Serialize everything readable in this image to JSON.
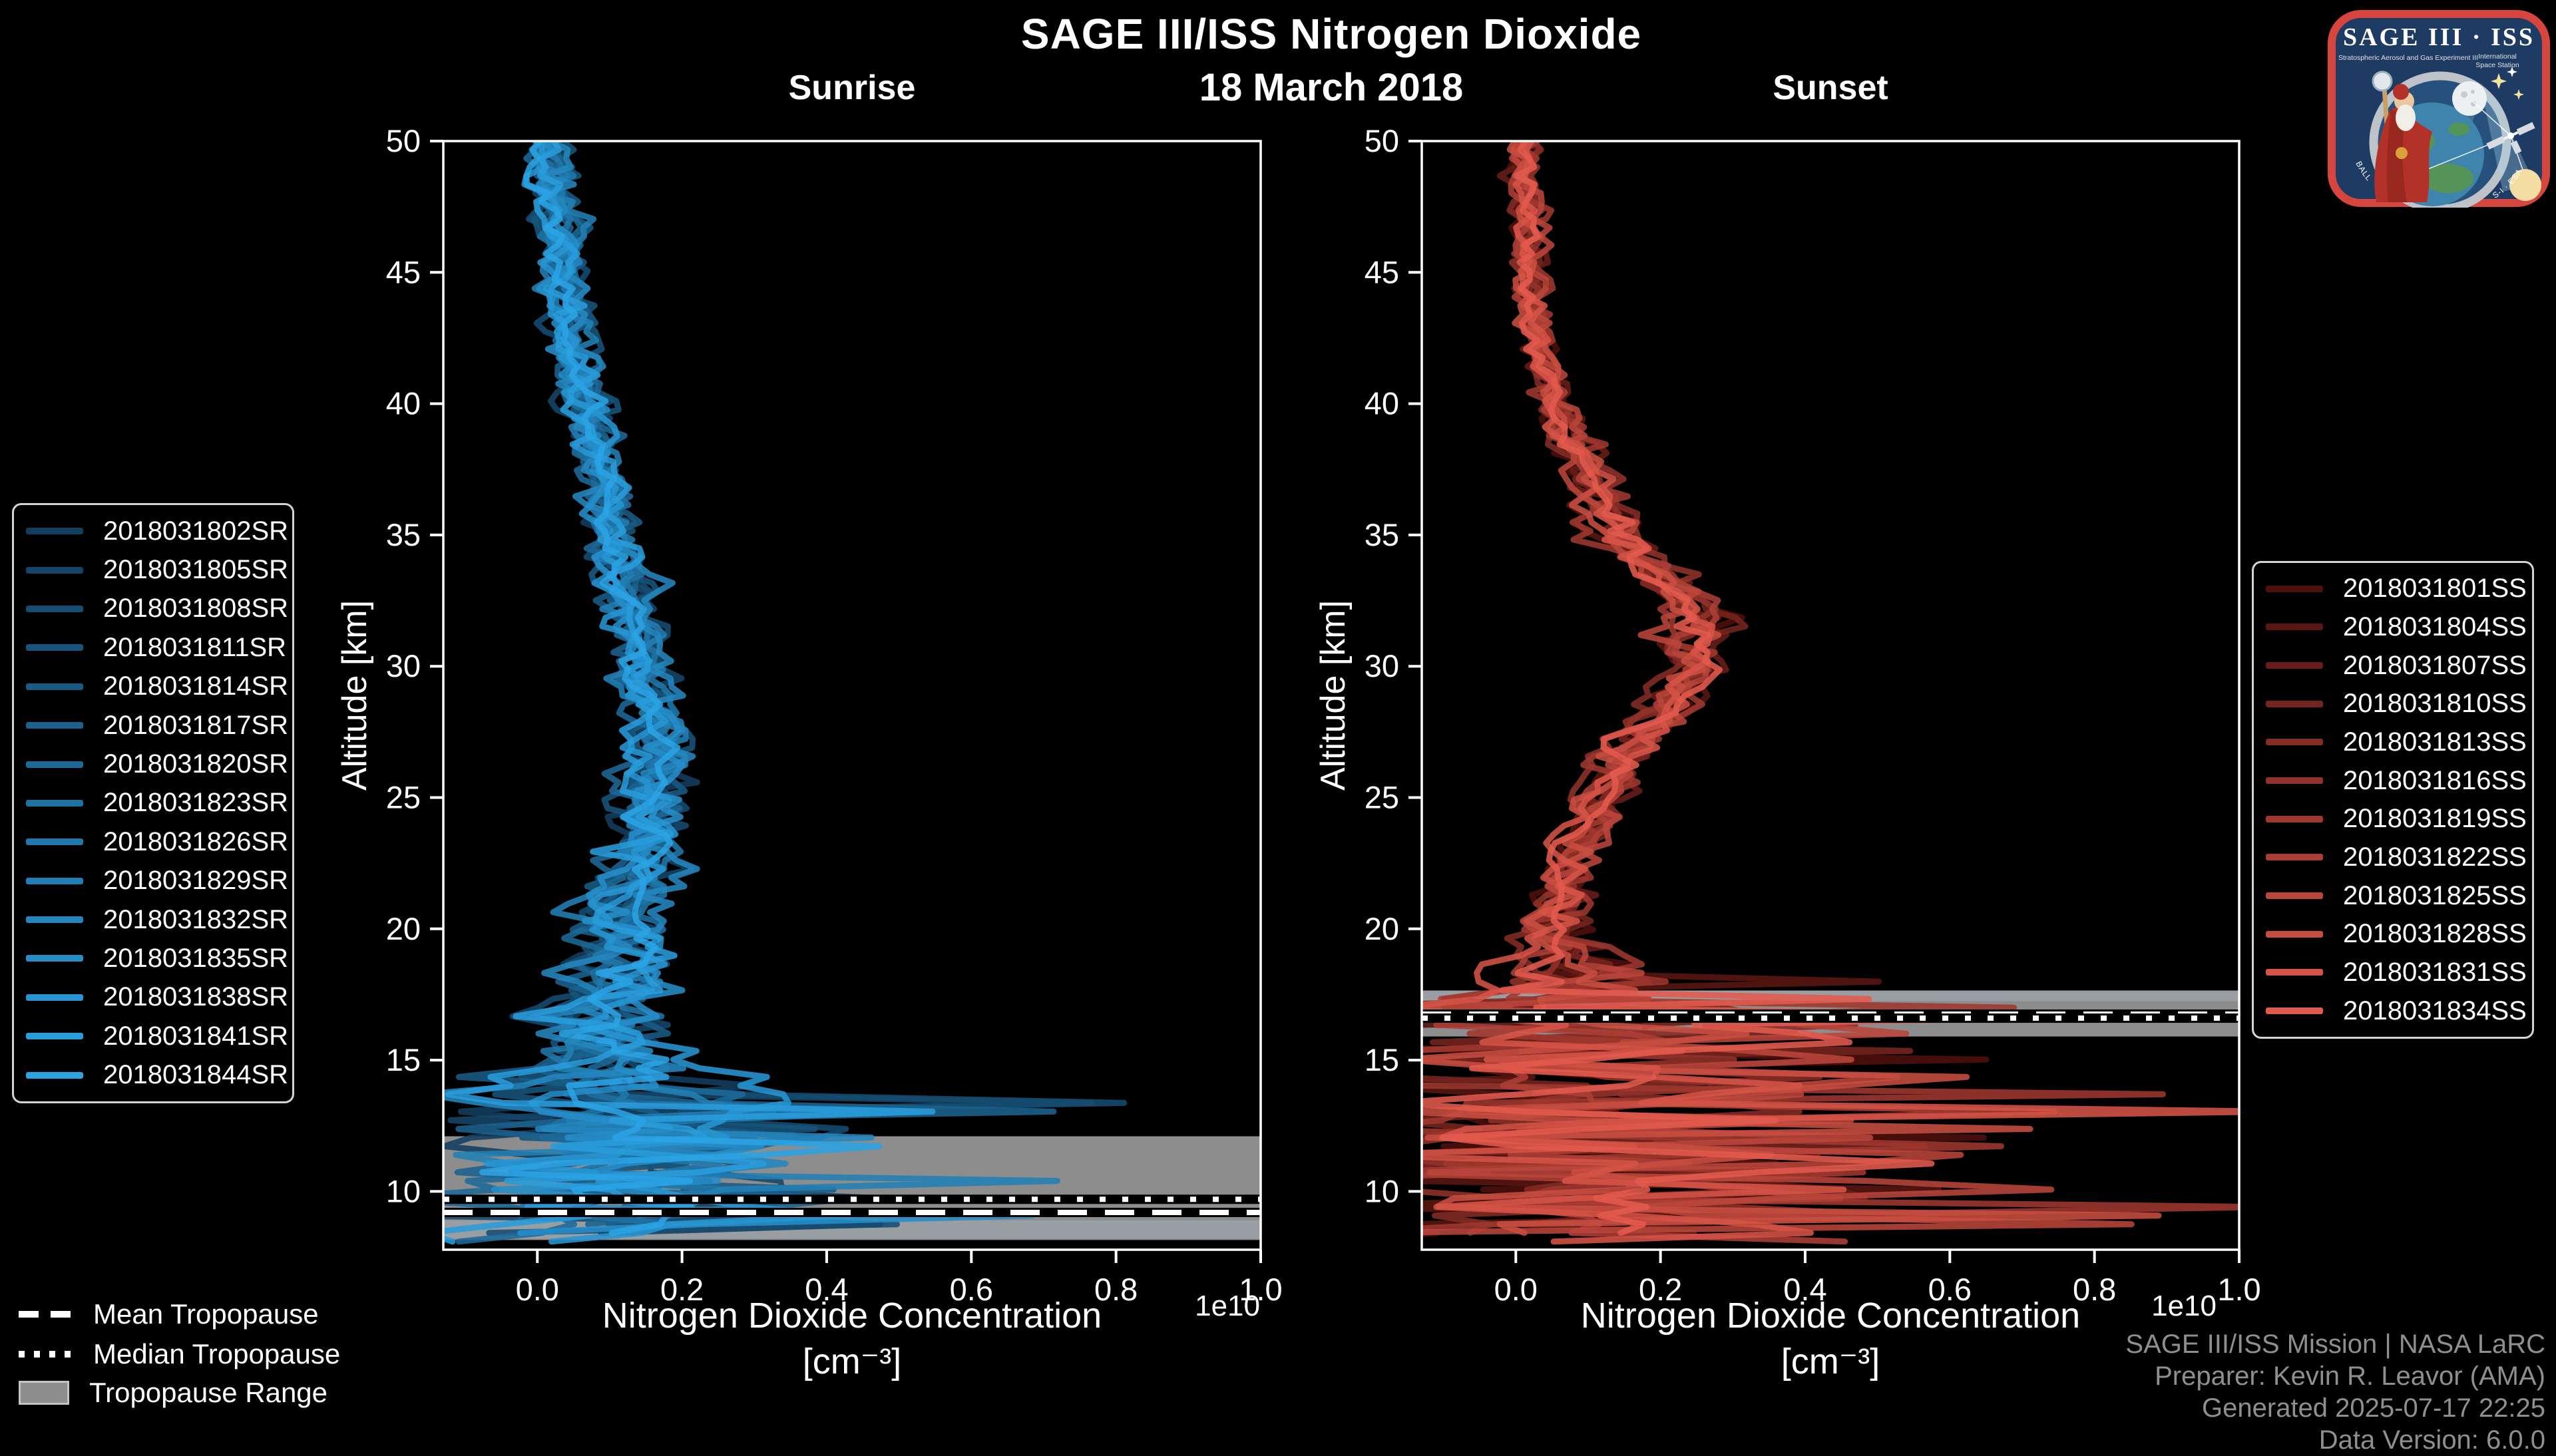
{
  "header": {
    "title": "SAGE III/ISS Nitrogen Dioxide",
    "date": "18 March 2018"
  },
  "tropopause_legend": {
    "mean": "Mean Tropopause",
    "median": "Median Tropopause",
    "range": "Tropopause Range"
  },
  "footer": {
    "lines": [
      "SAGE III/ISS Mission | NASA LaRC",
      "Preparer: Kevin R. Leavor (AMA)",
      "Generated 2025-07-17 22:25",
      "Data Version: 6.0.0"
    ]
  },
  "logo": {
    "title": "SAGE III · ISS",
    "sub_left": "Stratospheric Aerosol and Gas Experiment III",
    "sub_right_1": "International",
    "sub_right_2": "Space Station",
    "arc_left": "BALL",
    "arc_right": "S-I · ESA"
  },
  "colors": {
    "background": "#000000",
    "axis": "#ffffff",
    "tropopause_band": "#8d8d8d",
    "tropopause_band_light": "#9aa0a4",
    "footer_text": "#8f8f8f",
    "legend_border": "#d4d4d4"
  },
  "chart_data": {
    "type": "line",
    "title": "SAGE III/ISS Nitrogen Dioxide",
    "subtitle": "18 March 2018",
    "axis": {
      "xlabel": "Nitrogen Dioxide Concentration",
      "xlabel_units": "[cm⁻³]",
      "ylabel": "Altitude [km]",
      "x_offset_text": "1e10",
      "x_tick_labels": [
        "0.0",
        "0.2",
        "0.4",
        "0.6",
        "0.8",
        "1.0"
      ],
      "x_tick_values": [
        0,
        0.2,
        0.4,
        0.6,
        0.8,
        1.0
      ],
      "y_tick_values": [
        50,
        45,
        40,
        35,
        30,
        25,
        20,
        15,
        10
      ],
      "xlim_1e10": [
        -0.13,
        1.0
      ],
      "ylim_km": [
        7.78,
        50
      ],
      "grid": false
    },
    "panels": [
      {
        "id": "sunrise",
        "title": "Sunrise",
        "legend_position": "left",
        "series": [
          {
            "name": "2018031802SR",
            "color": "#123E5F"
          },
          {
            "name": "2018031805SR",
            "color": "#144568"
          },
          {
            "name": "2018031808SR",
            "color": "#164C72"
          },
          {
            "name": "2018031811SR",
            "color": "#17547B"
          },
          {
            "name": "2018031814SR",
            "color": "#195B85"
          },
          {
            "name": "2018031817SR",
            "color": "#1B628E"
          },
          {
            "name": "2018031820SR",
            "color": "#1D6998"
          },
          {
            "name": "2018031823SR",
            "color": "#1F71A2"
          },
          {
            "name": "2018031826SR",
            "color": "#2078AB"
          },
          {
            "name": "2018031829SR",
            "color": "#227FB5"
          },
          {
            "name": "2018031832SR",
            "color": "#2486BE"
          },
          {
            "name": "2018031835SR",
            "color": "#268DC8"
          },
          {
            "name": "2018031838SR",
            "color": "#2795D1"
          },
          {
            "name": "2018031841SR",
            "color": "#299CDB"
          },
          {
            "name": "2018031844SR",
            "color": "#2BA3E4"
          }
        ],
        "tropopause": {
          "range_km": [
            8.15,
            12.1
          ],
          "light_band_km": [
            8.2,
            8.9
          ],
          "mean_km": 9.2,
          "median_km": 9.7
        },
        "profile": {
          "altitude_km": [
            50,
            45,
            40,
            35,
            30,
            27,
            25,
            22,
            20,
            18,
            16,
            14,
            12,
            10,
            8
          ],
          "mean_1e10": [
            0.015,
            0.03,
            0.065,
            0.105,
            0.15,
            0.165,
            0.155,
            0.13,
            0.12,
            0.1,
            0.085,
            0.09,
            0.12,
            0.09,
            0.06
          ],
          "noise_1e10": [
            0.025,
            0.025,
            0.025,
            0.025,
            0.03,
            0.03,
            0.035,
            0.04,
            0.045,
            0.05,
            0.07,
            0.12,
            0.18,
            0.16,
            0.12
          ],
          "spike_below_km": 13.5,
          "spike_max_1e10": 0.85,
          "spike_prob": 0.16
        }
      },
      {
        "id": "sunset",
        "title": "Sunset",
        "legend_position": "right",
        "series": [
          {
            "name": "2018031801SS",
            "color": "#4E100C"
          },
          {
            "name": "2018031804SS",
            "color": "#5B1712"
          },
          {
            "name": "2018031807SS",
            "color": "#691D18"
          },
          {
            "name": "2018031810SS",
            "color": "#76241E"
          },
          {
            "name": "2018031813SS",
            "color": "#842B24"
          },
          {
            "name": "2018031816SS",
            "color": "#91322A"
          },
          {
            "name": "2018031819SS",
            "color": "#9F382F"
          },
          {
            "name": "2018031822SS",
            "color": "#AC3F35"
          },
          {
            "name": "2018031825SS",
            "color": "#BA463B"
          },
          {
            "name": "2018031828SS",
            "color": "#C74D41"
          },
          {
            "name": "2018031831SS",
            "color": "#D55347"
          },
          {
            "name": "2018031834SS",
            "color": "#E25A4D"
          }
        ],
        "tropopause": {
          "range_km": [
            15.9,
            17.65
          ],
          "light_band_km": [
            17.25,
            17.65
          ],
          "mean_km": 16.75,
          "median_km": 16.6
        },
        "profile": {
          "altitude_km": [
            50,
            45,
            40,
            35,
            32,
            30,
            27,
            25,
            22,
            20,
            18,
            16,
            14,
            12,
            10,
            8
          ],
          "mean_1e10": [
            0.012,
            0.02,
            0.05,
            0.14,
            0.26,
            0.24,
            0.16,
            0.115,
            0.07,
            0.05,
            0.045,
            0.05,
            0.055,
            0.055,
            0.06,
            0.05
          ],
          "noise_1e10": [
            0.018,
            0.018,
            0.022,
            0.03,
            0.035,
            0.035,
            0.03,
            0.03,
            0.03,
            0.04,
            0.08,
            0.22,
            0.26,
            0.3,
            0.33,
            0.25
          ],
          "spike_below_km": 18,
          "spike_max_1e10": 1.2,
          "spike_prob": 0.21
        }
      }
    ]
  }
}
